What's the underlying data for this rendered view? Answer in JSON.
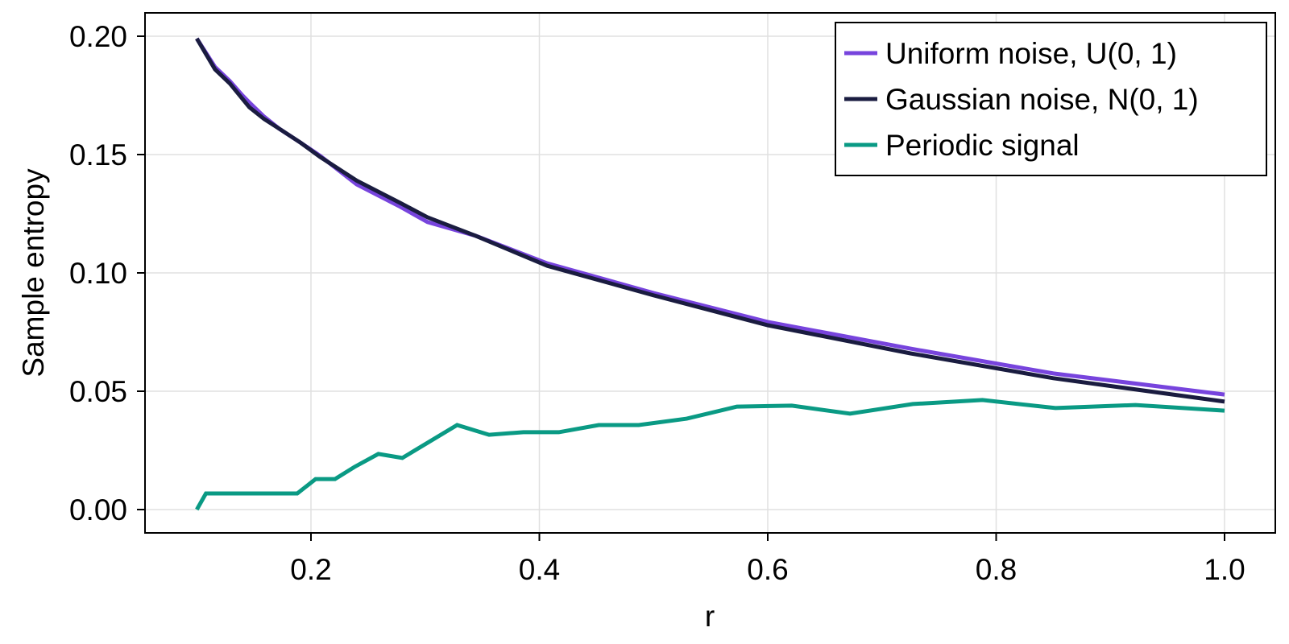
{
  "chart_data": {
    "type": "line",
    "title": "",
    "xlabel": "r",
    "ylabel": "Sample entropy",
    "xlim": [
      0.055,
      1.04
    ],
    "ylim": [
      -0.0105,
      0.2097
    ],
    "xticks": [
      0.2,
      0.4,
      0.6,
      0.8,
      1.0
    ],
    "xtick_labels": [
      "0.2",
      "0.4",
      "0.6",
      "0.8",
      "1.0"
    ],
    "yticks": [
      0.0,
      0.05,
      0.1,
      0.15,
      0.2
    ],
    "ytick_labels": [
      "0.00",
      "0.05",
      "0.10",
      "0.15",
      "0.20"
    ],
    "grid": true,
    "legend_position": "top-right",
    "series": [
      {
        "name": "Uniform noise, U(0, 1)",
        "color": "#7744dd",
        "x": [
          0.1,
          0.116,
          0.129,
          0.14,
          0.146,
          0.159,
          0.172,
          0.191,
          0.208,
          0.24,
          0.278,
          0.302,
          0.344,
          0.407,
          0.5,
          0.6,
          0.725,
          0.85,
          1.0
        ],
        "y": [
          0.199,
          0.187,
          0.181,
          0.175,
          0.172,
          0.166,
          0.161,
          0.155,
          0.1495,
          0.1374,
          0.128,
          0.1215,
          0.1157,
          0.104,
          0.0915,
          0.0793,
          0.068,
          0.0575,
          0.0486
        ]
      },
      {
        "name": "Gaussian noise, N(0, 1)",
        "color": "#1a1c40",
        "x": [
          0.1,
          0.116,
          0.129,
          0.146,
          0.159,
          0.172,
          0.191,
          0.208,
          0.24,
          0.278,
          0.302,
          0.344,
          0.407,
          0.5,
          0.6,
          0.725,
          0.85,
          1.0
        ],
        "y": [
          0.199,
          0.186,
          0.18,
          0.17,
          0.165,
          0.161,
          0.155,
          0.149,
          0.139,
          0.1296,
          0.1235,
          0.1157,
          0.103,
          0.0905,
          0.0779,
          0.066,
          0.0555,
          0.0456
        ]
      },
      {
        "name": "Periodic signal",
        "color": "#0a9a84",
        "x": [
          0.1,
          0.108,
          0.188,
          0.204,
          0.221,
          0.238,
          0.259,
          0.28,
          0.328,
          0.356,
          0.386,
          0.417,
          0.452,
          0.487,
          0.529,
          0.573,
          0.621,
          0.672,
          0.727,
          0.788,
          0.852,
          0.922,
          1.0
        ],
        "y": [
          0.0,
          0.0068,
          0.0068,
          0.0129,
          0.0129,
          0.018,
          0.0235,
          0.0218,
          0.0357,
          0.0316,
          0.0327,
          0.0327,
          0.0357,
          0.0357,
          0.0384,
          0.0435,
          0.0439,
          0.0405,
          0.0446,
          0.0463,
          0.0429,
          0.0442,
          0.0418
        ]
      }
    ]
  }
}
